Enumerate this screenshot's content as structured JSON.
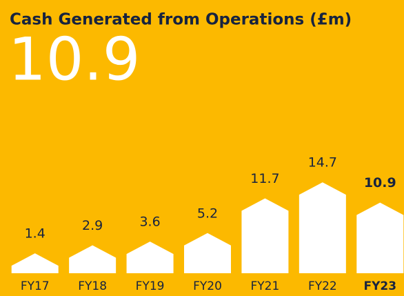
{
  "chart_data": {
    "type": "bar",
    "title": "Cash Generated from Operations (£m)",
    "headline": 10.9,
    "categories": [
      "FY17",
      "FY18",
      "FY19",
      "FY20",
      "FY21",
      "FY22",
      "FY23"
    ],
    "values": [
      1.4,
      2.9,
      3.6,
      5.2,
      11.7,
      14.7,
      10.9
    ],
    "color": "#ffffff",
    "highlight": 6
  }
}
